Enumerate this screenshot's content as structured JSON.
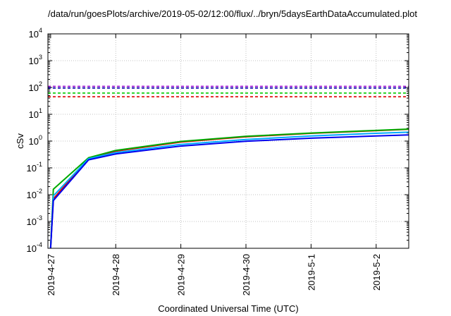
{
  "chart_data": {
    "type": "line",
    "title": "/data/run/goesPlots/archive/2019-05-02/12:00/flux/../bryn/5daysEarthDataAccumulated.plot",
    "xlabel": "Coordinated Universal Time (UTC)",
    "ylabel": "cSv",
    "yscale": "log",
    "ylim": [
      0.0001,
      10000
    ],
    "xlim": [
      "2019-04-26 23:00",
      "2019-05-02 12:00"
    ],
    "grid": true,
    "legend": "none",
    "y_ticks": [
      {
        "base": "10",
        "exp": "-4",
        "value": 0.0001
      },
      {
        "base": "10",
        "exp": "-3",
        "value": 0.001
      },
      {
        "base": "10",
        "exp": "-2",
        "value": 0.01
      },
      {
        "base": "10",
        "exp": "-1",
        "value": 0.1
      },
      {
        "base": "10",
        "exp": "0",
        "value": 1
      },
      {
        "base": "10",
        "exp": "1",
        "value": 10
      },
      {
        "base": "10",
        "exp": "2",
        "value": 100
      },
      {
        "base": "10",
        "exp": "3",
        "value": 1000
      },
      {
        "base": "10",
        "exp": "4",
        "value": 10000
      }
    ],
    "x_ticks": [
      {
        "label": "2019-4-27",
        "value": "2019-04-27 00:00"
      },
      {
        "label": "2019-4-28",
        "value": "2019-04-28 00:00"
      },
      {
        "label": "2019-4-29",
        "value": "2019-04-29 00:00"
      },
      {
        "label": "2019-4-30",
        "value": "2019-04-30 00:00"
      },
      {
        "label": "2019-5-1",
        "value": "2019-05-01 00:00"
      },
      {
        "label": "2019-5-2",
        "value": "2019-05-02 00:00"
      }
    ],
    "thresholds": [
      {
        "value": 110,
        "color": "#9400d3",
        "style": "dashed"
      },
      {
        "value": 95,
        "color": "#0000aa",
        "style": "dashed"
      },
      {
        "value": 62,
        "color": "#00cc00",
        "style": "dashed"
      },
      {
        "value": 45,
        "color": "#dd0000",
        "style": "dashed"
      }
    ],
    "series": [
      {
        "color": "#dd0000",
        "x": [
          "2019-04-27 00:00",
          "2019-04-27 01:00",
          "2019-04-27 14:00",
          "2019-04-28 00:00",
          "2019-04-29 00:00",
          "2019-04-30 00:00",
          "2019-05-01 00:00",
          "2019-05-02 00:00",
          "2019-05-02 12:00"
        ],
        "values": [
          0.0001,
          0.007,
          0.23,
          0.42,
          0.92,
          1.45,
          1.95,
          2.45,
          2.75
        ]
      },
      {
        "color": "#00aa00",
        "x": [
          "2019-04-27 00:00",
          "2019-04-27 01:00",
          "2019-04-27 14:00",
          "2019-04-28 00:00",
          "2019-04-29 00:00",
          "2019-04-30 00:00",
          "2019-05-01 00:00",
          "2019-05-02 00:00",
          "2019-05-02 12:00"
        ],
        "values": [
          0.0001,
          0.016,
          0.24,
          0.45,
          0.97,
          1.5,
          2.0,
          2.5,
          2.8
        ]
      },
      {
        "color": "#00aaff",
        "x": [
          "2019-04-27 00:00",
          "2019-04-27 01:00",
          "2019-04-27 14:00",
          "2019-04-28 00:00",
          "2019-04-29 00:00",
          "2019-04-30 00:00",
          "2019-05-01 00:00",
          "2019-05-02 00:00",
          "2019-05-02 12:00"
        ],
        "values": [
          0.0001,
          0.009,
          0.22,
          0.37,
          0.75,
          1.15,
          1.55,
          1.95,
          2.15
        ]
      },
      {
        "color": "#0000ee",
        "x": [
          "2019-04-27 00:00",
          "2019-04-27 01:00",
          "2019-04-27 14:00",
          "2019-04-28 00:00",
          "2019-04-29 00:00",
          "2019-04-30 00:00",
          "2019-05-01 00:00",
          "2019-05-02 00:00",
          "2019-05-02 12:00"
        ],
        "values": [
          0.0001,
          0.006,
          0.2,
          0.33,
          0.65,
          0.98,
          1.28,
          1.55,
          1.7
        ]
      }
    ]
  }
}
